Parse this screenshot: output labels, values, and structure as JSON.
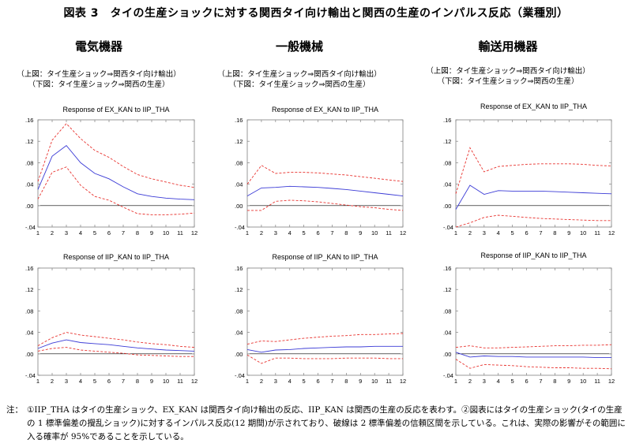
{
  "title": "図表 3　タイの生産ショックに対する関西タイ向け輸出と関西の生産のインパルス反応（業種別）",
  "columns": [
    {
      "heading": "電気機器",
      "subtitle1": "（上図：タイ生産ショック⇒関西タイ向け輸出）",
      "subtitle2": "（下図：タイ生産ショック⇒関西の生産）"
    },
    {
      "heading": "一般機械",
      "subtitle1": "（上図：タイ生産ショック⇒関西タイ向け輸出）",
      "subtitle2": "（下図：タイ生産ショック⇒関西の生産）"
    },
    {
      "heading": "輸送用機器",
      "subtitle1": "（上図：タイ生産ショック⇒関西タイ向け輸出）",
      "subtitle2": "（下図：タイ生産ショック⇒関西の生産）"
    }
  ],
  "note": {
    "label": "注：",
    "text": "①IIP_THA はタイの生産ショック、EX_KAN は関西タイ向け輸出の反応、IIP_KAN は関西の生産の反応を表わす。②図表にはタイの生産ショック(タイの生産の 1 標準偏差の攪乱ショック)に対するインパルス反応(12 期間)が示されており、破線は 2 標準偏差の信頼区間を示している。これは、実際の影響がその範囲に入る確率が 95%であることを示している。"
  },
  "colors": {
    "response": "#3b3bd6",
    "band": "#e8332f",
    "zero": "#000000",
    "frame": "#808080"
  },
  "chart_data": [
    {
      "type": "line",
      "title": "Response of EX_KAN to IIP_THA",
      "x": [
        1,
        2,
        3,
        4,
        5,
        6,
        7,
        8,
        9,
        10,
        11,
        12
      ],
      "ylim": [
        -0.04,
        0.16
      ],
      "yticks": [
        -0.04,
        0.0,
        0.04,
        0.08,
        0.12,
        0.16
      ],
      "ytick_labels": [
        "-.04",
        ".00",
        ".04",
        ".08",
        ".12",
        ".16"
      ],
      "series": [
        {
          "values": [
            0.03,
            0.092,
            0.112,
            0.08,
            0.06,
            0.05,
            0.035,
            0.022,
            0.017,
            0.014,
            0.012,
            0.011
          ]
        },
        {
          "values": [
            0.045,
            0.122,
            0.153,
            0.125,
            0.103,
            0.09,
            0.073,
            0.058,
            0.05,
            0.044,
            0.038,
            0.034
          ]
        },
        {
          "values": [
            0.012,
            0.062,
            0.072,
            0.038,
            0.017,
            0.01,
            -0.003,
            -0.015,
            -0.017,
            -0.017,
            -0.016,
            -0.014
          ]
        }
      ]
    },
    {
      "type": "line",
      "title": "Response of EX_KAN to IIP_THA",
      "x": [
        1,
        2,
        3,
        4,
        5,
        6,
        7,
        8,
        9,
        10,
        11,
        12
      ],
      "ylim": [
        -0.04,
        0.16
      ],
      "yticks": [
        -0.04,
        0.0,
        0.04,
        0.08,
        0.12,
        0.16
      ],
      "ytick_labels": [
        "-.04",
        ".00",
        ".04",
        ".08",
        ".12",
        ".16"
      ],
      "series": [
        {
          "values": [
            0.018,
            0.033,
            0.034,
            0.036,
            0.035,
            0.034,
            0.032,
            0.03,
            0.027,
            0.024,
            0.021,
            0.018
          ]
        },
        {
          "values": [
            0.04,
            0.075,
            0.06,
            0.062,
            0.062,
            0.061,
            0.059,
            0.057,
            0.054,
            0.051,
            0.048,
            0.045
          ]
        },
        {
          "values": [
            -0.009,
            -0.009,
            0.008,
            0.01,
            0.009,
            0.007,
            0.004,
            0.001,
            -0.002,
            -0.004,
            -0.007,
            -0.009
          ]
        }
      ]
    },
    {
      "type": "line",
      "title": "Response of EX_KAN to IIP_THA",
      "x": [
        1,
        2,
        3,
        4,
        5,
        6,
        7,
        8,
        9,
        10,
        11,
        12
      ],
      "ylim": [
        -0.04,
        0.16
      ],
      "yticks": [
        -0.04,
        0.0,
        0.04,
        0.08,
        0.12,
        0.16
      ],
      "ytick_labels": [
        "-.04",
        ".00",
        ".04",
        ".08",
        ".12",
        ".16"
      ],
      "series": [
        {
          "values": [
            -0.007,
            0.038,
            0.021,
            0.028,
            0.027,
            0.027,
            0.027,
            0.026,
            0.025,
            0.024,
            0.023,
            0.022
          ]
        },
        {
          "values": [
            0.022,
            0.108,
            0.063,
            0.073,
            0.075,
            0.077,
            0.078,
            0.078,
            0.078,
            0.077,
            0.075,
            0.074
          ]
        },
        {
          "values": [
            -0.04,
            -0.032,
            -0.022,
            -0.018,
            -0.02,
            -0.022,
            -0.024,
            -0.025,
            -0.026,
            -0.027,
            -0.028,
            -0.028
          ]
        }
      ]
    },
    {
      "type": "line",
      "title": "Response of IIP_KAN to IIP_THA",
      "x": [
        1,
        2,
        3,
        4,
        5,
        6,
        7,
        8,
        9,
        10,
        11,
        12
      ],
      "ylim": [
        -0.04,
        0.16
      ],
      "yticks": [
        -0.04,
        0.0,
        0.04,
        0.08,
        0.12,
        0.16
      ],
      "ytick_labels": [
        "-.04",
        ".00",
        ".04",
        ".08",
        ".12",
        ".16"
      ],
      "series": [
        {
          "values": [
            0.01,
            0.02,
            0.026,
            0.021,
            0.019,
            0.017,
            0.014,
            0.011,
            0.009,
            0.007,
            0.006,
            0.005
          ]
        },
        {
          "values": [
            0.015,
            0.03,
            0.04,
            0.035,
            0.032,
            0.029,
            0.026,
            0.022,
            0.019,
            0.017,
            0.014,
            0.012
          ]
        },
        {
          "values": [
            0.005,
            0.01,
            0.012,
            0.007,
            0.005,
            0.003,
            0.001,
            -0.002,
            -0.003,
            -0.004,
            -0.005,
            -0.005
          ]
        }
      ]
    },
    {
      "type": "line",
      "title": "Response of IIP_KAN to IIP_THA",
      "x": [
        1,
        2,
        3,
        4,
        5,
        6,
        7,
        8,
        9,
        10,
        11,
        12
      ],
      "ylim": [
        -0.04,
        0.16
      ],
      "yticks": [
        -0.04,
        0.0,
        0.04,
        0.08,
        0.12,
        0.16
      ],
      "ytick_labels": [
        "-.04",
        ".00",
        ".04",
        ".08",
        ".12",
        ".16"
      ],
      "series": [
        {
          "values": [
            0.008,
            0.003,
            0.007,
            0.008,
            0.01,
            0.011,
            0.012,
            0.013,
            0.013,
            0.014,
            0.014,
            0.014
          ]
        },
        {
          "values": [
            0.018,
            0.024,
            0.023,
            0.026,
            0.029,
            0.031,
            0.033,
            0.034,
            0.036,
            0.036,
            0.037,
            0.038
          ]
        },
        {
          "values": [
            -0.002,
            -0.018,
            -0.008,
            -0.008,
            -0.009,
            -0.009,
            -0.009,
            -0.008,
            -0.008,
            -0.008,
            -0.009,
            -0.009
          ]
        }
      ]
    },
    {
      "type": "line",
      "title": "Response of IIP_KAN to IIP_THA",
      "x": [
        1,
        2,
        3,
        4,
        5,
        6,
        7,
        8,
        9,
        10,
        11,
        12
      ],
      "ylim": [
        -0.04,
        0.16
      ],
      "yticks": [
        -0.04,
        0.0,
        0.04,
        0.08,
        0.12,
        0.16
      ],
      "ytick_labels": [
        "-.04",
        ".00",
        ".04",
        ".08",
        ".12",
        ".16"
      ],
      "series": [
        {
          "values": [
            0.003,
            -0.006,
            -0.004,
            -0.005,
            -0.005,
            -0.006,
            -0.006,
            -0.006,
            -0.006,
            -0.006,
            -0.007,
            -0.007
          ]
        },
        {
          "values": [
            0.012,
            0.015,
            0.011,
            0.011,
            0.012,
            0.013,
            0.014,
            0.015,
            0.015,
            0.016,
            0.016,
            0.017
          ]
        },
        {
          "values": [
            -0.01,
            -0.027,
            -0.02,
            -0.021,
            -0.022,
            -0.024,
            -0.025,
            -0.026,
            -0.026,
            -0.027,
            -0.027,
            -0.028
          ]
        }
      ]
    }
  ]
}
